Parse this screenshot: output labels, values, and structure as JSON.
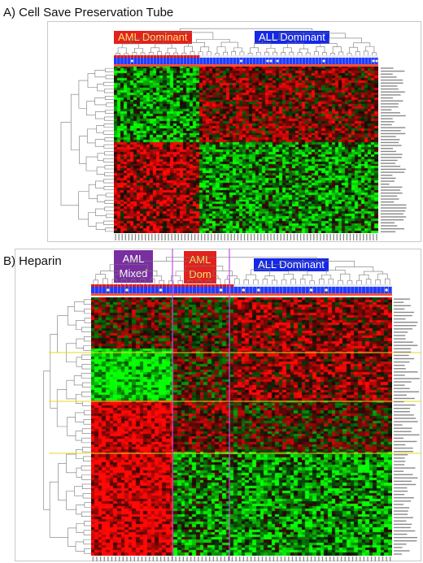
{
  "panel_a": {
    "title": "A) Cell Save Preservation Tube",
    "badges": {
      "aml": "AML Dominant",
      "all": "ALL Dominant"
    }
  },
  "panel_b": {
    "title": "B) Heparin",
    "badges": {
      "aml_mixed_line1": "AML",
      "aml_mixed_line2": "Mixed",
      "aml_dom_line1": "AML",
      "aml_dom_line2": "Dom",
      "all": "ALL Dominant"
    }
  },
  "colors": {
    "up": "#e01010",
    "down": "#14d014",
    "neutral": "#150505",
    "sample_strip": "#1f3cff",
    "badge_red": "#e2201e",
    "badge_blue": "#1428e6",
    "badge_purple": "#7a2fa0"
  }
}
